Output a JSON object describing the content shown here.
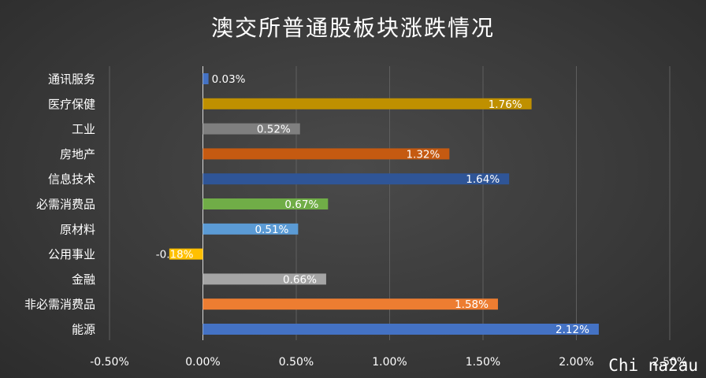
{
  "chart_data": {
    "type": "bar",
    "orientation": "horizontal",
    "title": "澳交所普通股板块涨跌情况",
    "categories": [
      "通讯服务",
      "医疗保健",
      "工业",
      "房地产",
      "信息技术",
      "必需消费品",
      "原材料",
      "公用事业",
      "金融",
      "非必需消费品",
      "能源"
    ],
    "values": [
      0.03,
      1.76,
      0.52,
      1.32,
      1.64,
      0.67,
      0.51,
      -0.18,
      0.66,
      1.58,
      2.12
    ],
    "value_labels": [
      "0.03%",
      "1.76%",
      "0.52%",
      "1.32%",
      "1.64%",
      "0.67%",
      "0.51%",
      "-0.18%",
      "0.66%",
      "1.58%",
      "2.12%"
    ],
    "colors": [
      "#4472c4",
      "#bf9000",
      "#7f7f7f",
      "#c55a11",
      "#2f5597",
      "#70ad47",
      "#5b9bd5",
      "#ffc000",
      "#a5a5a5",
      "#ed7d31",
      "#4472c4"
    ],
    "xlim": [
      -0.5,
      2.5
    ],
    "xticks": [
      -0.5,
      0,
      0.5,
      1.0,
      1.5,
      2.0,
      2.5
    ],
    "xtick_labels": [
      "-0.50%",
      "0.00%",
      "0.50%",
      "1.00%",
      "1.50%",
      "2.00%",
      "2.50%"
    ],
    "grid": true,
    "legend": "none"
  },
  "watermark": "Chi na2au"
}
